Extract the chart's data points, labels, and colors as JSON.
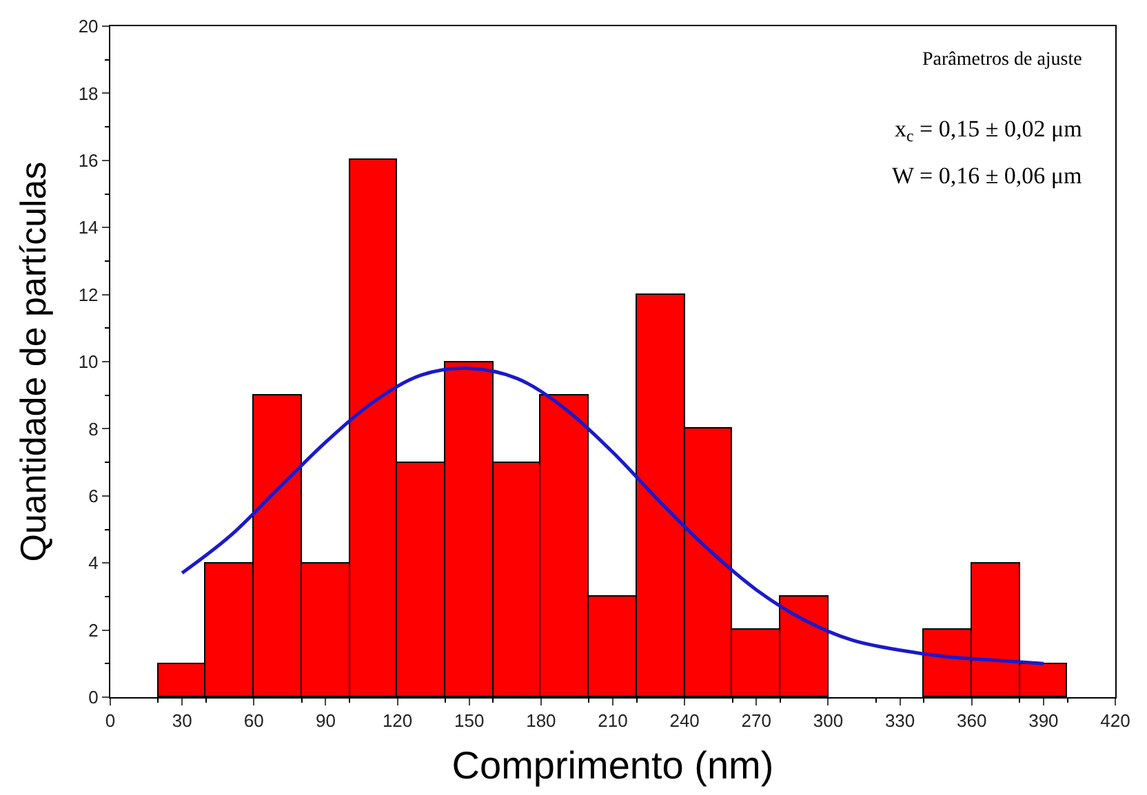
{
  "chart_data": {
    "type": "histogram",
    "xlabel": "Comprimento (nm)",
    "ylabel": "Quantidade de partículas",
    "xlim": [
      0,
      420
    ],
    "xticks": [
      0,
      30,
      60,
      90,
      120,
      150,
      180,
      210,
      240,
      270,
      300,
      330,
      360,
      390,
      420
    ],
    "ylim": [
      0,
      20
    ],
    "yticks": [
      0,
      2,
      4,
      6,
      8,
      10,
      12,
      14,
      16,
      18,
      20
    ],
    "annotations": [
      "Parâmetros de ajuste",
      "x$_{c}$ = 0,15 ± 0,02 μm",
      "W = 0,16 ± 0,06 μm"
    ],
    "series": [
      {
        "color": "#ff0000",
        "bins": [
          20,
          40,
          60,
          80,
          100,
          120,
          140,
          160,
          180,
          200,
          220,
          240,
          260,
          280,
          300,
          320,
          340,
          360,
          380,
          400
        ],
        "values": [
          1,
          4,
          9,
          4,
          16,
          7,
          10,
          7,
          9,
          3,
          12,
          8,
          2,
          3,
          0,
          0,
          2,
          4,
          1
        ]
      },
      {
        "type": "line",
        "color": "#1a1acc",
        "x": [
          30,
          50,
          70,
          90,
          110,
          130,
          150,
          170,
          190,
          210,
          230,
          250,
          270,
          290,
          310,
          330,
          350,
          370,
          390
        ],
        "values": [
          3.7,
          4.8,
          6.2,
          7.6,
          8.8,
          9.6,
          9.8,
          9.5,
          8.6,
          7.3,
          5.8,
          4.4,
          3.2,
          2.3,
          1.7,
          1.4,
          1.2,
          1.1,
          1.0
        ]
      }
    ]
  }
}
